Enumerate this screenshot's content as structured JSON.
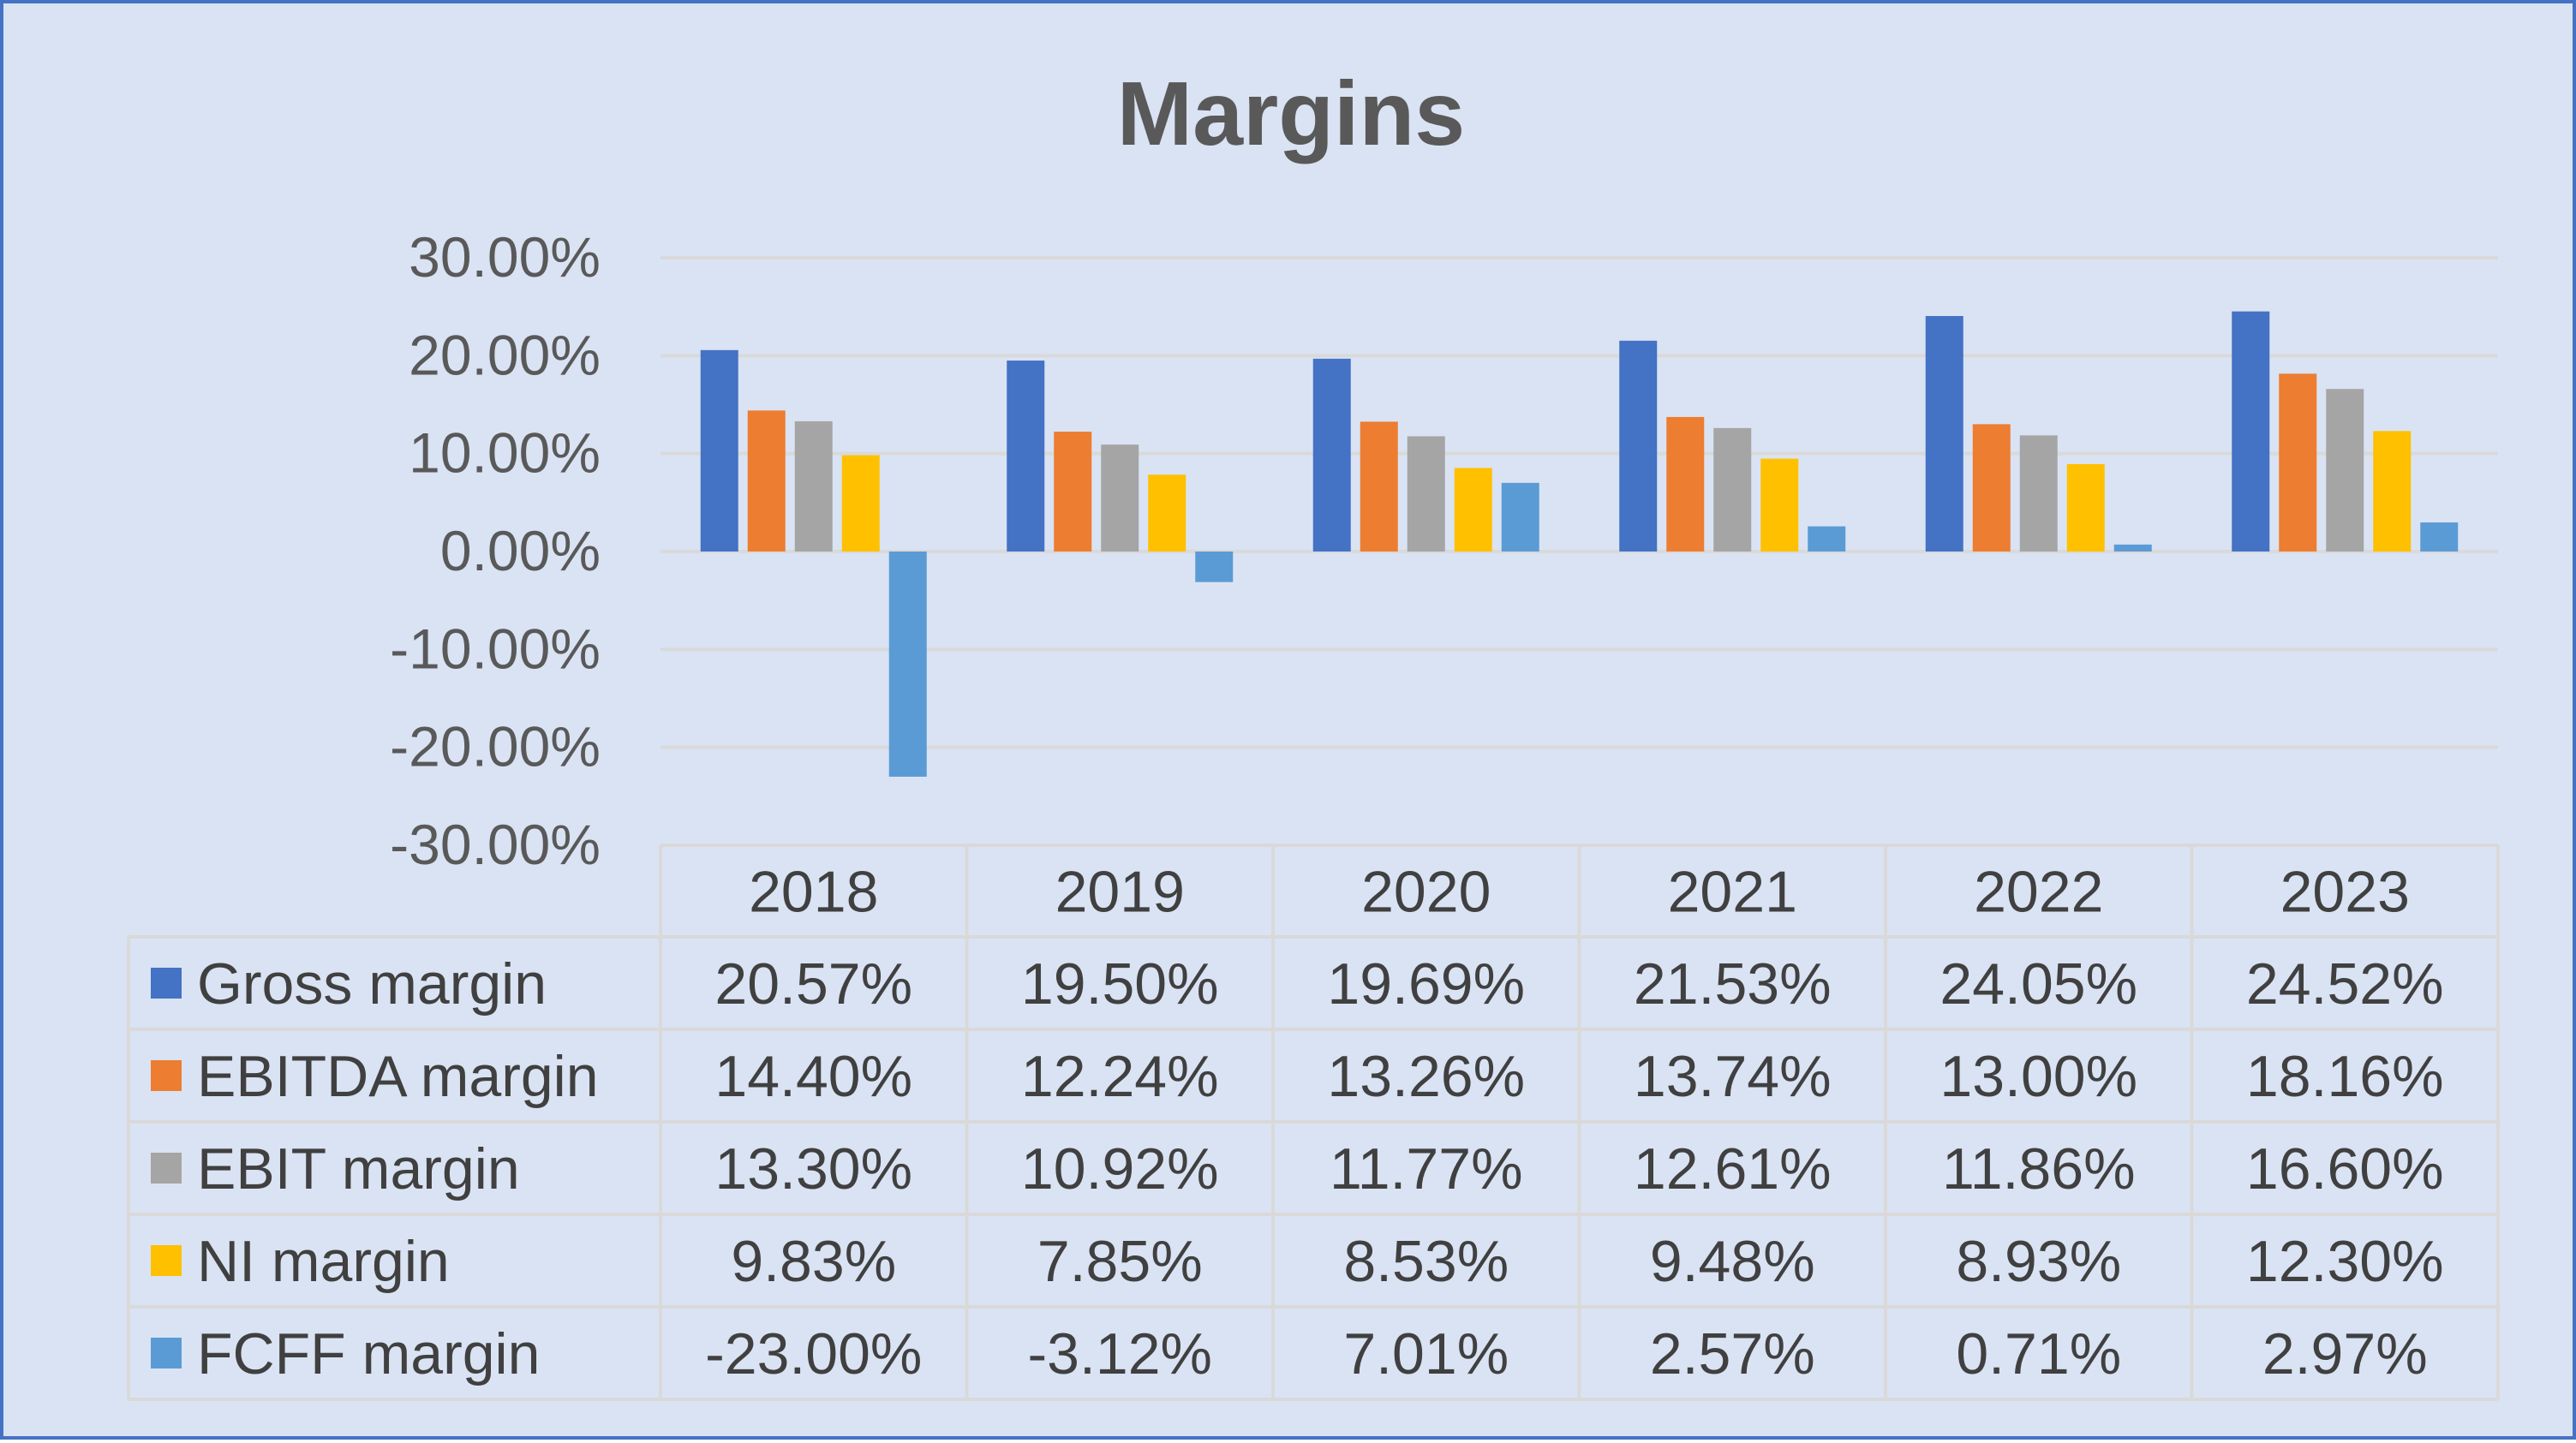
{
  "chart_data": {
    "type": "bar",
    "title": "Margins",
    "categories": [
      "2018",
      "2019",
      "2020",
      "2021",
      "2022",
      "2023"
    ],
    "y_ticks": [
      "30.00%",
      "20.00%",
      "10.00%",
      "0.00%",
      "-10.00%",
      "-20.00%",
      "-30.00%"
    ],
    "ylim": [
      -30,
      30
    ],
    "ytick_step": 10,
    "grid": true,
    "legend": "data-table",
    "series": [
      {
        "name": "Gross margin",
        "color": "#4472C4",
        "values": [
          20.57,
          19.5,
          19.69,
          21.53,
          24.05,
          24.52
        ],
        "labels": [
          "20.57%",
          "19.50%",
          "19.69%",
          "21.53%",
          "24.05%",
          "24.52%"
        ]
      },
      {
        "name": "EBITDA margin",
        "color": "#ED7D31",
        "values": [
          14.4,
          12.24,
          13.26,
          13.74,
          13.0,
          18.16
        ],
        "labels": [
          "14.40%",
          "12.24%",
          "13.26%",
          "13.74%",
          "13.00%",
          "18.16%"
        ]
      },
      {
        "name": "EBIT margin",
        "color": "#A5A5A5",
        "values": [
          13.3,
          10.92,
          11.77,
          12.61,
          11.86,
          16.6
        ],
        "labels": [
          "13.30%",
          "10.92%",
          "11.77%",
          "12.61%",
          "11.86%",
          "16.60%"
        ]
      },
      {
        "name": "NI margin",
        "color": "#FFC000",
        "values": [
          9.83,
          7.85,
          8.53,
          9.48,
          8.93,
          12.3
        ],
        "labels": [
          "9.83%",
          "7.85%",
          "8.53%",
          "9.48%",
          "8.93%",
          "12.30%"
        ]
      },
      {
        "name": "FCFF margin",
        "color": "#5B9BD5",
        "values": [
          -23.0,
          -3.12,
          7.01,
          2.57,
          0.71,
          2.97
        ],
        "labels": [
          "-23.00%",
          "-3.12%",
          "7.01%",
          "2.57%",
          "0.71%",
          "2.97%"
        ]
      }
    ]
  }
}
